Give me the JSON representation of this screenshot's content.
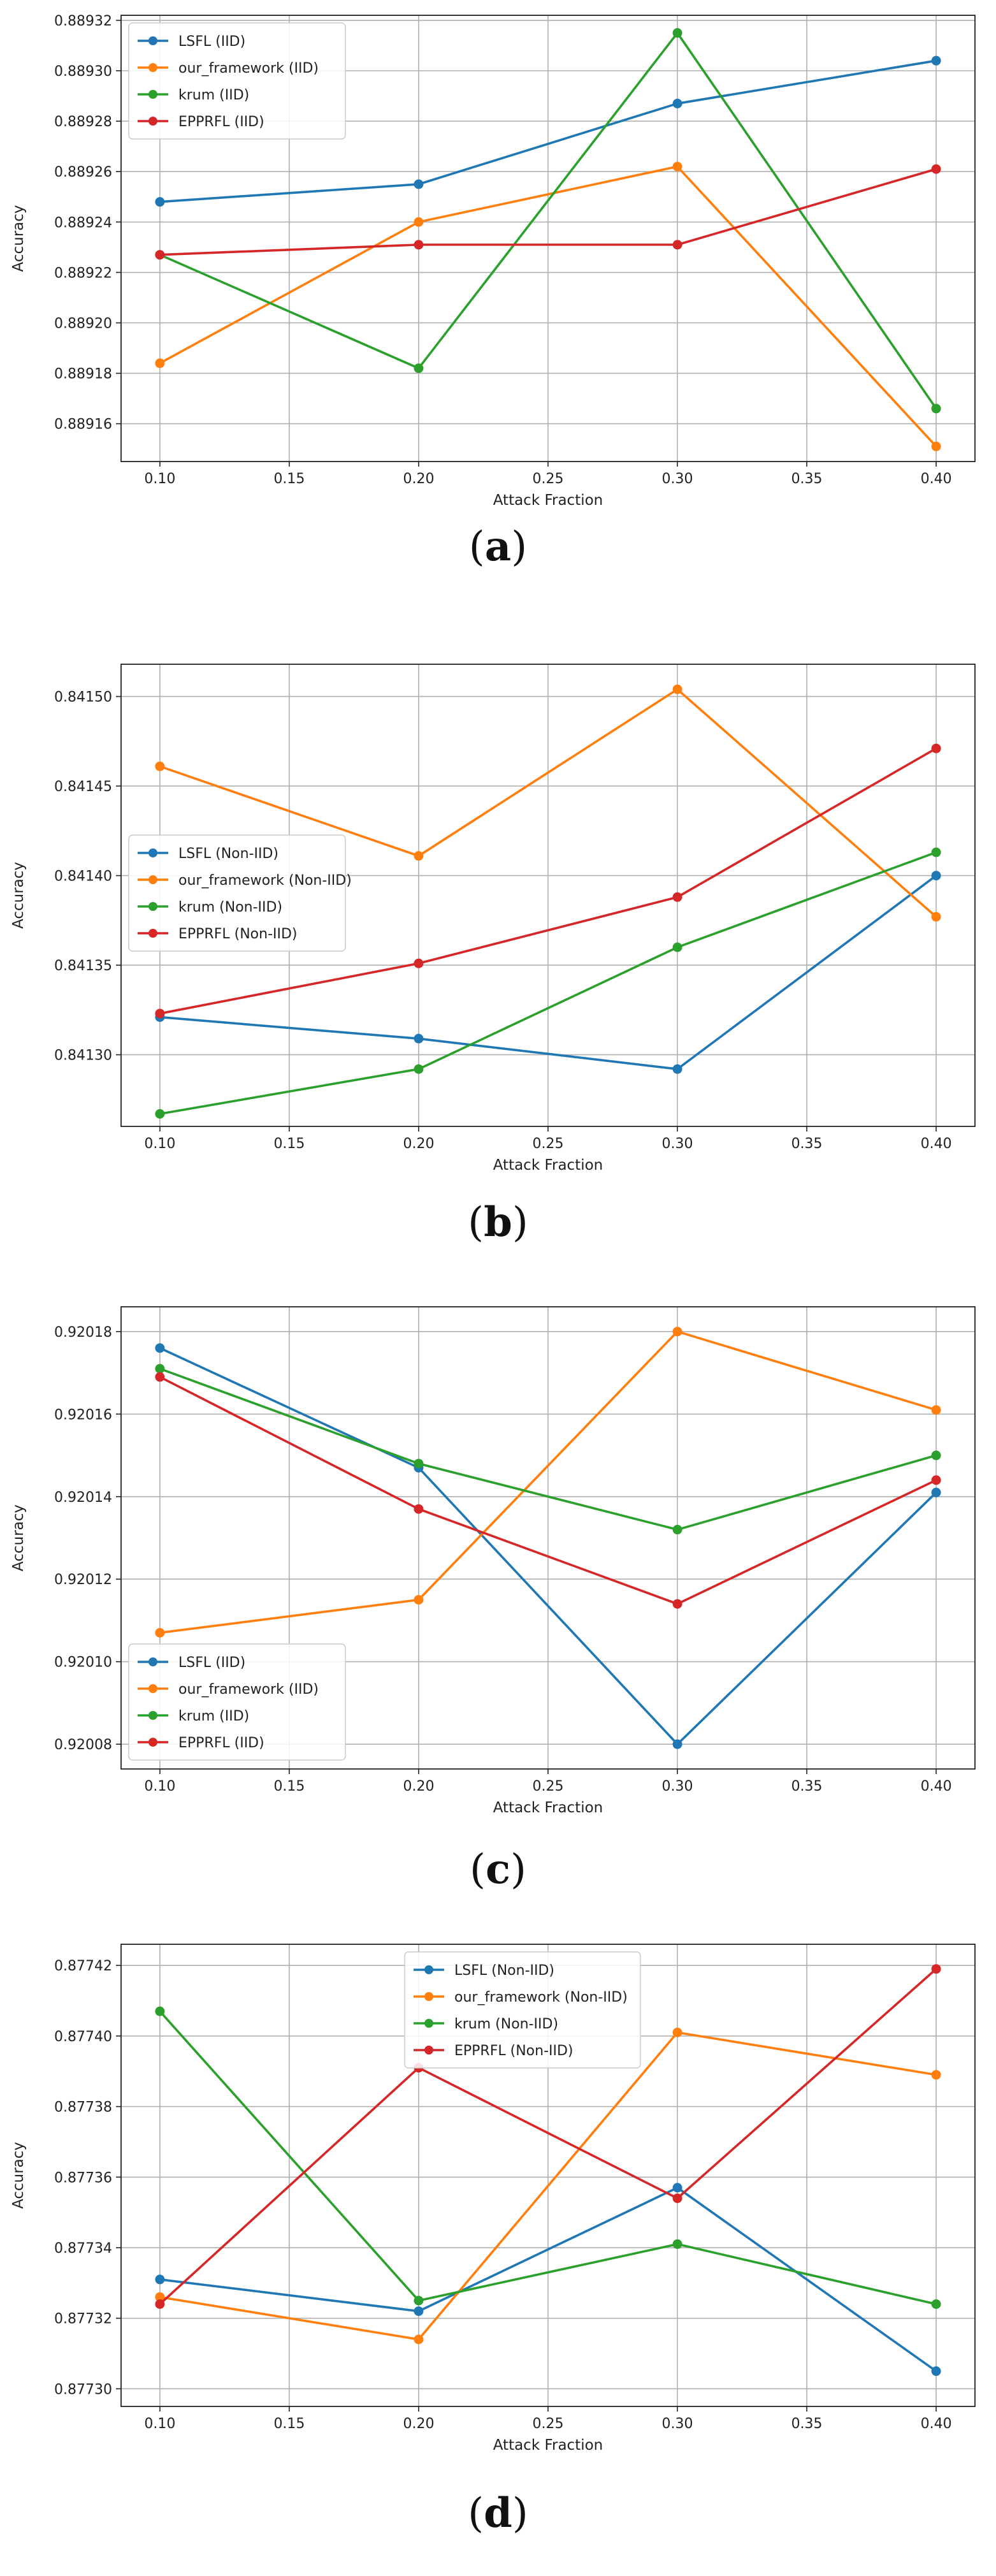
{
  "chart_data": [
    {
      "panel": "a",
      "type": "line",
      "xlabel": "Attack Fraction",
      "ylabel": "Accuracy",
      "x": [
        0.1,
        0.2,
        0.3,
        0.4
      ],
      "xticks": [
        "0.10",
        "0.15",
        "0.20",
        "0.25",
        "0.30",
        "0.35",
        "0.40"
      ],
      "xlim": [
        0.085,
        0.415
      ],
      "yticks": [
        "0.88916",
        "0.88918",
        "0.88920",
        "0.88922",
        "0.88924",
        "0.88926",
        "0.88928",
        "0.88930",
        "0.88932"
      ],
      "ylim": [
        0.889145,
        0.889322
      ],
      "legend_position": "top-left",
      "series": [
        {
          "name": "LSFL (IID)",
          "color": "#1f77b4",
          "values": [
            0.889248,
            0.889255,
            0.889287,
            0.889304
          ]
        },
        {
          "name": "our_framework (IID)",
          "color": "#ff7f0e",
          "values": [
            0.889184,
            0.88924,
            0.889262,
            0.889151
          ]
        },
        {
          "name": "krum (IID)",
          "color": "#2ca02c",
          "values": [
            0.889227,
            0.889182,
            0.889315,
            0.889166
          ]
        },
        {
          "name": "EPPRFL (IID)",
          "color": "#d62728",
          "values": [
            0.889227,
            0.889231,
            0.889231,
            0.889261
          ]
        }
      ]
    },
    {
      "panel": "b",
      "type": "line",
      "xlabel": "Attack Fraction",
      "ylabel": "Accuracy",
      "x": [
        0.1,
        0.2,
        0.3,
        0.4
      ],
      "xticks": [
        "0.10",
        "0.15",
        "0.20",
        "0.25",
        "0.30",
        "0.35",
        "0.40"
      ],
      "xlim": [
        0.085,
        0.415
      ],
      "yticks": [
        "0.84130",
        "0.84135",
        "0.84140",
        "0.84145",
        "0.84150"
      ],
      "ylim": [
        0.84126,
        0.841518
      ],
      "legend_position": "center-left",
      "series": [
        {
          "name": "LSFL (Non-IID)",
          "color": "#1f77b4",
          "values": [
            0.841321,
            0.841309,
            0.841292,
            0.8414
          ]
        },
        {
          "name": "our_framework (Non-IID)",
          "color": "#ff7f0e",
          "values": [
            0.841461,
            0.841411,
            0.841504,
            0.841377
          ]
        },
        {
          "name": "krum (Non-IID)",
          "color": "#2ca02c",
          "values": [
            0.841267,
            0.841292,
            0.84136,
            0.841413
          ]
        },
        {
          "name": "EPPRFL (Non-IID)",
          "color": "#d62728",
          "values": [
            0.841323,
            0.841351,
            0.841388,
            0.841471
          ]
        }
      ]
    },
    {
      "panel": "c",
      "type": "line",
      "xlabel": "Attack Fraction",
      "ylabel": "Accuracy",
      "x": [
        0.1,
        0.2,
        0.3,
        0.4
      ],
      "xticks": [
        "0.10",
        "0.15",
        "0.20",
        "0.25",
        "0.30",
        "0.35",
        "0.40"
      ],
      "xlim": [
        0.085,
        0.415
      ],
      "yticks": [
        "0.92008",
        "0.92010",
        "0.92012",
        "0.92014",
        "0.92016",
        "0.92018"
      ],
      "ylim": [
        0.920074,
        0.920186
      ],
      "legend_position": "bottom-left",
      "series": [
        {
          "name": "LSFL (IID)",
          "color": "#1f77b4",
          "values": [
            0.920176,
            0.920147,
            0.92008,
            0.920141
          ]
        },
        {
          "name": "our_framework (IID)",
          "color": "#ff7f0e",
          "values": [
            0.920107,
            0.920115,
            0.92018,
            0.920161
          ]
        },
        {
          "name": "krum (IID)",
          "color": "#2ca02c",
          "values": [
            0.920171,
            0.920148,
            0.920132,
            0.92015
          ]
        },
        {
          "name": "EPPRFL (IID)",
          "color": "#d62728",
          "values": [
            0.920169,
            0.920137,
            0.920114,
            0.920144
          ]
        }
      ]
    },
    {
      "panel": "d",
      "type": "line",
      "xlabel": "Attack Fraction",
      "ylabel": "Accuracy",
      "x": [
        0.1,
        0.2,
        0.3,
        0.4
      ],
      "xticks": [
        "0.10",
        "0.15",
        "0.20",
        "0.25",
        "0.30",
        "0.35",
        "0.40"
      ],
      "xlim": [
        0.085,
        0.415
      ],
      "yticks": [
        "0.87730",
        "0.87732",
        "0.87734",
        "0.87736",
        "0.87738",
        "0.87740",
        "0.87742"
      ],
      "ylim": [
        0.877295,
        0.877426
      ],
      "legend_position": "top-center",
      "series": [
        {
          "name": "LSFL (Non-IID)",
          "color": "#1f77b4",
          "values": [
            0.877331,
            0.877322,
            0.877357,
            0.877305
          ]
        },
        {
          "name": "our_framework (Non-IID)",
          "color": "#ff7f0e",
          "values": [
            0.877326,
            0.877314,
            0.877401,
            0.877389
          ]
        },
        {
          "name": "krum (Non-IID)",
          "color": "#2ca02c",
          "values": [
            0.877407,
            0.877325,
            0.877341,
            0.877324
          ]
        },
        {
          "name": "EPPRFL (Non-IID)",
          "color": "#d62728",
          "values": [
            0.877324,
            0.877391,
            0.877354,
            0.877419
          ]
        }
      ]
    }
  ],
  "captions": {
    "a": "a",
    "b": "b",
    "c": "c",
    "d": "d"
  }
}
